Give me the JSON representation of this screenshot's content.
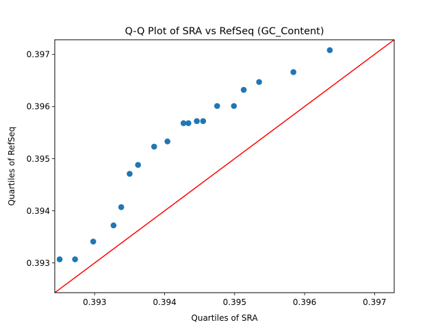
{
  "chart_data": {
    "type": "scatter",
    "title": "Q-Q Plot of SRA vs RefSeq (GC_Content)",
    "xlabel": "Quartiles of SRA",
    "ylabel": "Quartiles of RefSeq",
    "xlim": [
      0.39243,
      0.39728
    ],
    "ylim": [
      0.39243,
      0.39728
    ],
    "xticks": [
      0.393,
      0.394,
      0.395,
      0.396,
      0.397
    ],
    "yticks": [
      0.393,
      0.394,
      0.395,
      0.396,
      0.397
    ],
    "xtick_labels": [
      "0.393",
      "0.394",
      "0.395",
      "0.396",
      "0.397"
    ],
    "ytick_labels": [
      "0.393",
      "0.394",
      "0.395",
      "0.396",
      "0.397"
    ],
    "grid": false,
    "series": [
      {
        "marker_color": "#1f77b4",
        "points": [
          {
            "x": 0.3925,
            "y": 0.39307
          },
          {
            "x": 0.39272,
            "y": 0.39307
          },
          {
            "x": 0.39298,
            "y": 0.39341
          },
          {
            "x": 0.39327,
            "y": 0.39372
          },
          {
            "x": 0.39338,
            "y": 0.39407
          },
          {
            "x": 0.3935,
            "y": 0.39471
          },
          {
            "x": 0.39362,
            "y": 0.39488
          },
          {
            "x": 0.39385,
            "y": 0.39523
          },
          {
            "x": 0.39404,
            "y": 0.39533
          },
          {
            "x": 0.39427,
            "y": 0.39568
          },
          {
            "x": 0.39434,
            "y": 0.39568
          },
          {
            "x": 0.39446,
            "y": 0.39572
          },
          {
            "x": 0.39455,
            "y": 0.39572
          },
          {
            "x": 0.39475,
            "y": 0.39601
          },
          {
            "x": 0.39499,
            "y": 0.39601
          },
          {
            "x": 0.39513,
            "y": 0.39632
          },
          {
            "x": 0.39535,
            "y": 0.39647
          },
          {
            "x": 0.39584,
            "y": 0.39666
          },
          {
            "x": 0.39636,
            "y": 0.39708
          }
        ]
      }
    ],
    "reference_line": {
      "type": "y=x",
      "color": "#ff0000"
    }
  }
}
